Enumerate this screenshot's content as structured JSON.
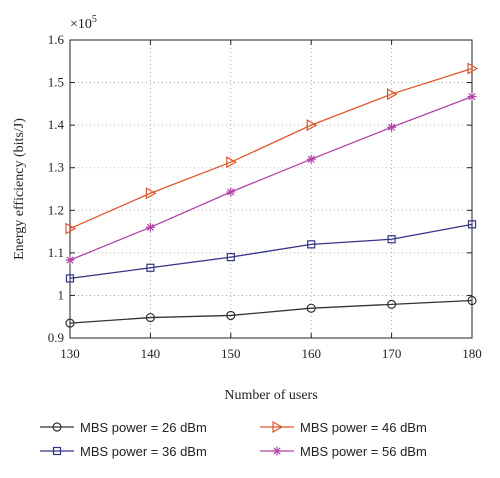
{
  "chart_data": {
    "type": "line",
    "xlabel": "Number of users",
    "ylabel": "Energy efficiency (bits/J)",
    "y_multiplier_label": "×10",
    "y_multiplier_exponent": "5",
    "x": [
      130,
      140,
      150,
      160,
      170,
      180
    ],
    "x_ticks": [
      "130",
      "140",
      "150",
      "160",
      "170",
      "180"
    ],
    "y_ticks": [
      "0.9",
      "1",
      "1.1",
      "1.2",
      "1.3",
      "1.4",
      "1.5",
      "1.6"
    ],
    "xlim": [
      130,
      180
    ],
    "ylim": [
      0.9,
      1.6
    ],
    "grid": true,
    "legend_position": "bottom",
    "series": [
      {
        "name": "MBS power = 26 dBm",
        "color": "#333333",
        "marker": "circle",
        "values": [
          0.935,
          0.948,
          0.953,
          0.97,
          0.979,
          0.988
        ]
      },
      {
        "name": "MBS power = 36 dBm",
        "color": "#333388",
        "marker": "square",
        "values": [
          1.04,
          1.065,
          1.09,
          1.12,
          1.132,
          1.167
        ]
      },
      {
        "name": "MBS power = 46 dBm",
        "color": "#e0562a",
        "marker": "triangle-right",
        "values": [
          1.157,
          1.24,
          1.313,
          1.4,
          1.473,
          1.533
        ]
      },
      {
        "name": "MBS power = 56 dBm",
        "color": "#b245a8",
        "marker": "asterisk",
        "values": [
          1.083,
          1.16,
          1.243,
          1.32,
          1.395,
          1.467
        ]
      }
    ]
  }
}
